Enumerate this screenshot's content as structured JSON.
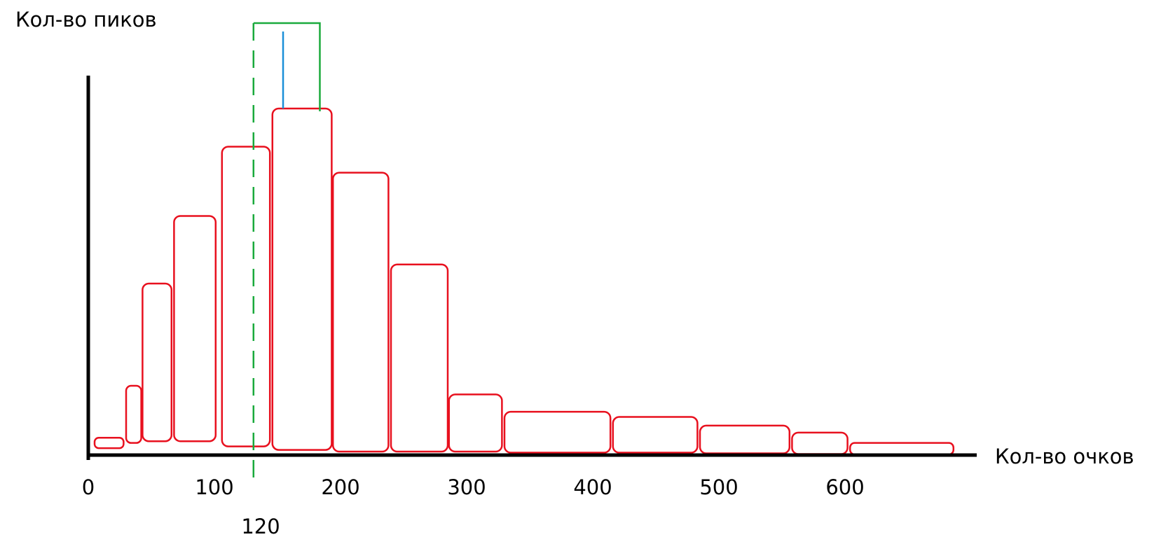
{
  "colors": {
    "bars": "#e8101e",
    "axes": "#000000",
    "marker_green": "#1aaa3c",
    "marker_blue": "#1a8fd8",
    "background": "#ffffff"
  },
  "chart_data": {
    "type": "bar",
    "title": "",
    "xlabel": "Кол-во очков",
    "ylabel": "Кол-во пиков",
    "xticks": [
      0,
      100,
      200,
      300,
      400,
      500,
      600
    ],
    "xlim": [
      0,
      700
    ],
    "ylim": [
      0,
      100
    ],
    "grid": false,
    "annotation": {
      "label": "120",
      "x": 131
    },
    "bins": [
      {
        "x_start": 5,
        "x_end": 28,
        "bottom": 2.0,
        "top": 5.0
      },
      {
        "x_start": 30,
        "x_end": 42,
        "bottom": 3.5,
        "top": 20.0
      },
      {
        "x_start": 43,
        "x_end": 66,
        "bottom": 4.0,
        "top": 49.5
      },
      {
        "x_start": 68,
        "x_end": 101,
        "bottom": 4.0,
        "top": 69.0
      },
      {
        "x_start": 106,
        "x_end": 144,
        "bottom": 2.5,
        "top": 89.0
      },
      {
        "x_start": 146,
        "x_end": 193,
        "bottom": 1.5,
        "top": 100.0
      },
      {
        "x_start": 194,
        "x_end": 238,
        "bottom": 1.0,
        "top": 81.5
      },
      {
        "x_start": 240,
        "x_end": 285,
        "bottom": 1.0,
        "top": 55.0
      },
      {
        "x_start": 286,
        "x_end": 328,
        "bottom": 1.0,
        "top": 17.5
      },
      {
        "x_start": 330,
        "x_end": 414,
        "bottom": 0.7,
        "top": 12.5
      },
      {
        "x_start": 416,
        "x_end": 483,
        "bottom": 0.7,
        "top": 11.0
      },
      {
        "x_start": 485,
        "x_end": 556,
        "bottom": 0.5,
        "top": 8.5
      },
      {
        "x_start": 558,
        "x_end": 602,
        "bottom": 0.3,
        "top": 6.5
      },
      {
        "x_start": 604,
        "x_end": 686,
        "bottom": 0.2,
        "top": 3.5
      }
    ]
  }
}
